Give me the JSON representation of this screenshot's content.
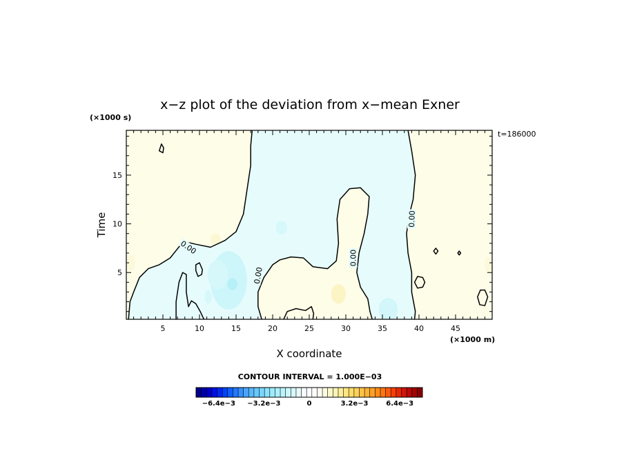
{
  "chart_data": {
    "type": "heatmap",
    "title": "x−z plot of the deviation from x−mean Exner",
    "xlabel": "X coordinate",
    "ylabel": "Time",
    "x_unit": "(×1000 m)",
    "y_unit": "(×1000 s)",
    "time_label": "t=186000",
    "xlim": [
      0,
      50
    ],
    "ylim": [
      0.2,
      19.6
    ],
    "x_ticks": [
      "5",
      "10",
      "15",
      "20",
      "25",
      "30",
      "35",
      "40",
      "45"
    ],
    "y_ticks": [
      "5",
      "10",
      "15"
    ],
    "contour_interval_label": "CONTOUR INTERVAL = 1.000E−03",
    "contour_label": "0.00",
    "colorbar": {
      "range": [
        -0.008,
        0.008
      ],
      "tick_labels": [
        "−6.4e−3",
        "−3.2e−3",
        "0",
        "3.2e−3",
        "6.4e−3"
      ],
      "colors": [
        "#00008c",
        "#0000a8",
        "#0000c8",
        "#0010e0",
        "#0028f0",
        "#0044f8",
        "#1060fa",
        "#2478fc",
        "#3890fc",
        "#48a6fc",
        "#5ab8fc",
        "#68c8fc",
        "#78d6fc",
        "#8ae2fc",
        "#9ceafc",
        "#acf0fc",
        "#bcf4fc",
        "#ccf8fc",
        "#daf8fa",
        "#e8fafa",
        "#f4fcfc",
        "#ffffff",
        "#ffffff",
        "#fcfcf0",
        "#fcfce0",
        "#fcf8cc",
        "#fcf4b4",
        "#fcee9c",
        "#fce684",
        "#fcdc6c",
        "#fcd05a",
        "#fcc248",
        "#fcb236",
        "#fca028",
        "#fc8c1c",
        "#fc7414",
        "#fa5a0c",
        "#f44008",
        "#e42808",
        "#d01408",
        "#b80808",
        "#a00404",
        "#880000"
      ]
    },
    "regions": [
      {
        "kind": "positive",
        "color": "#fdfde8",
        "label": "left region x 0–17"
      },
      {
        "kind": "negative",
        "color": "#e6fcfc",
        "label": "central region x 17–39"
      },
      {
        "kind": "positive",
        "color": "#fdfde8",
        "label": "right region x 39–50"
      }
    ],
    "contours": [
      {
        "level": 0.0,
        "points": [
          [
            17.2,
            19.6
          ],
          [
            17.0,
            18.0
          ],
          [
            17.0,
            16.0
          ],
          [
            16.5,
            13.5
          ],
          [
            16.0,
            11.0
          ],
          [
            15.0,
            9.2
          ],
          [
            13.5,
            8.3
          ],
          [
            11.5,
            7.6
          ],
          [
            9.5,
            7.9
          ],
          [
            7.8,
            8.2
          ],
          [
            6.0,
            6.5
          ],
          [
            4.5,
            5.8
          ],
          [
            3.0,
            5.4
          ],
          [
            1.8,
            4.5
          ],
          [
            1.0,
            3.0
          ],
          [
            0.5,
            2.0
          ],
          [
            0.3,
            0.2
          ]
        ]
      },
      {
        "level": 0.0,
        "points": [
          [
            6.8,
            0.2
          ],
          [
            6.8,
            2.0
          ],
          [
            7.2,
            4.0
          ],
          [
            7.7,
            5.0
          ],
          [
            8.2,
            4.8
          ],
          [
            8.2,
            3.0
          ],
          [
            8.5,
            1.5
          ],
          [
            8.9,
            2.1
          ],
          [
            9.5,
            1.8
          ],
          [
            10.1,
            1.0
          ],
          [
            10.6,
            0.2
          ]
        ]
      },
      {
        "level": 0.0,
        "points": [
          [
            18.5,
            0.2
          ],
          [
            18.0,
            1.5
          ],
          [
            18.0,
            3.0
          ],
          [
            18.8,
            4.5
          ],
          [
            20.0,
            5.8
          ],
          [
            21.0,
            6.3
          ],
          [
            22.5,
            6.6
          ],
          [
            24.2,
            6.5
          ],
          [
            25.5,
            5.6
          ],
          [
            27.5,
            5.4
          ],
          [
            28.7,
            6.2
          ],
          [
            29.0,
            8.0
          ],
          [
            28.8,
            10.5
          ],
          [
            29.2,
            12.5
          ],
          [
            30.5,
            13.6
          ],
          [
            32.0,
            13.7
          ],
          [
            33.2,
            12.8
          ],
          [
            33.0,
            11.0
          ],
          [
            32.5,
            9.0
          ],
          [
            31.8,
            7.0
          ],
          [
            31.5,
            5.0
          ],
          [
            32.0,
            3.5
          ],
          [
            33.0,
            2.3
          ],
          [
            33.3,
            1.0
          ],
          [
            33.6,
            0.2
          ]
        ]
      },
      {
        "level": 0.0,
        "points": [
          [
            38.5,
            19.6
          ],
          [
            39.0,
            17.5
          ],
          [
            39.5,
            15.0
          ],
          [
            39.2,
            12.5
          ],
          [
            38.7,
            11.0
          ],
          [
            38.3,
            9.0
          ],
          [
            38.5,
            7.0
          ],
          [
            39.0,
            5.0
          ],
          [
            39.0,
            3.0
          ],
          [
            39.5,
            1.0
          ],
          [
            39.4,
            0.2
          ]
        ]
      },
      {
        "level": 0.0,
        "closed": true,
        "points": [
          [
            9.5,
            5.8
          ],
          [
            10.0,
            6.0
          ],
          [
            10.4,
            5.3
          ],
          [
            10.3,
            4.8
          ],
          [
            9.8,
            4.6
          ],
          [
            9.5,
            5.2
          ]
        ]
      },
      {
        "level": 0.0,
        "closed": true,
        "points": [
          [
            4.5,
            17.5
          ],
          [
            4.8,
            18.2
          ],
          [
            5.1,
            17.8
          ],
          [
            5.0,
            17.3
          ]
        ]
      },
      {
        "level": 0.0,
        "closed": true,
        "points": [
          [
            39.4,
            4.0
          ],
          [
            39.8,
            4.6
          ],
          [
            40.5,
            4.5
          ],
          [
            40.8,
            4.0
          ],
          [
            40.5,
            3.5
          ],
          [
            39.8,
            3.4
          ]
        ]
      },
      {
        "level": 0.0,
        "closed": true,
        "points": [
          [
            48.0,
            2.5
          ],
          [
            48.4,
            3.2
          ],
          [
            49.0,
            3.2
          ],
          [
            49.4,
            2.5
          ],
          [
            49.0,
            1.6
          ],
          [
            48.3,
            1.7
          ]
        ]
      },
      {
        "level": 0.0,
        "closed": true,
        "points": [
          [
            42.0,
            7.2
          ],
          [
            42.3,
            7.5
          ],
          [
            42.6,
            7.2
          ],
          [
            42.3,
            6.9
          ]
        ]
      },
      {
        "level": 0.0,
        "closed": true,
        "points": [
          [
            45.3,
            7.0
          ],
          [
            45.5,
            7.2
          ],
          [
            45.7,
            7.0
          ],
          [
            45.5,
            6.8
          ]
        ]
      },
      {
        "level": 0.0,
        "points": [
          [
            21.5,
            0.2
          ],
          [
            22.0,
            1.0
          ],
          [
            23.2,
            1.3
          ],
          [
            24.5,
            1.1
          ],
          [
            25.3,
            1.5
          ],
          [
            25.6,
            0.8
          ],
          [
            25.5,
            0.2
          ]
        ]
      }
    ],
    "contour_labels": [
      {
        "x": 8.5,
        "y": 7.6,
        "angle": 35
      },
      {
        "x": 18.0,
        "y": 4.7,
        "angle": -80
      },
      {
        "x": 31.0,
        "y": 6.5,
        "angle": -90
      },
      {
        "x": 39.0,
        "y": 10.5,
        "angle": -88
      }
    ],
    "blobs": [
      {
        "x": 14.0,
        "y": 4.2,
        "rx": 2.5,
        "ry": 3.0,
        "color": "#cdf6fa"
      },
      {
        "x": 14.5,
        "y": 3.8,
        "rx": 0.7,
        "ry": 0.6,
        "color": "#b8f0f8"
      },
      {
        "x": 12.5,
        "y": 4.8,
        "rx": 1.4,
        "ry": 1.5,
        "color": "#d6f8fa"
      },
      {
        "x": 11.2,
        "y": 2.5,
        "rx": 0.5,
        "ry": 0.7,
        "color": "#d6f8fa"
      },
      {
        "x": 35.8,
        "y": 1.2,
        "rx": 1.3,
        "ry": 1.2,
        "color": "#d2f6fa"
      },
      {
        "x": 21.2,
        "y": 9.6,
        "rx": 0.8,
        "ry": 0.7,
        "color": "#d6f8fa"
      },
      {
        "x": 12.2,
        "y": 8.4,
        "rx": 0.7,
        "ry": 0.6,
        "color": "#fcf6d2"
      },
      {
        "x": 29.0,
        "y": 2.8,
        "rx": 1.0,
        "ry": 1.0,
        "color": "#fcf4c4"
      },
      {
        "x": 0.6,
        "y": 6.0,
        "rx": 0.6,
        "ry": 0.8,
        "color": "#fcf8da"
      },
      {
        "x": 49.5,
        "y": 5.8,
        "rx": 0.5,
        "ry": 0.8,
        "color": "#fcf8da"
      }
    ]
  }
}
